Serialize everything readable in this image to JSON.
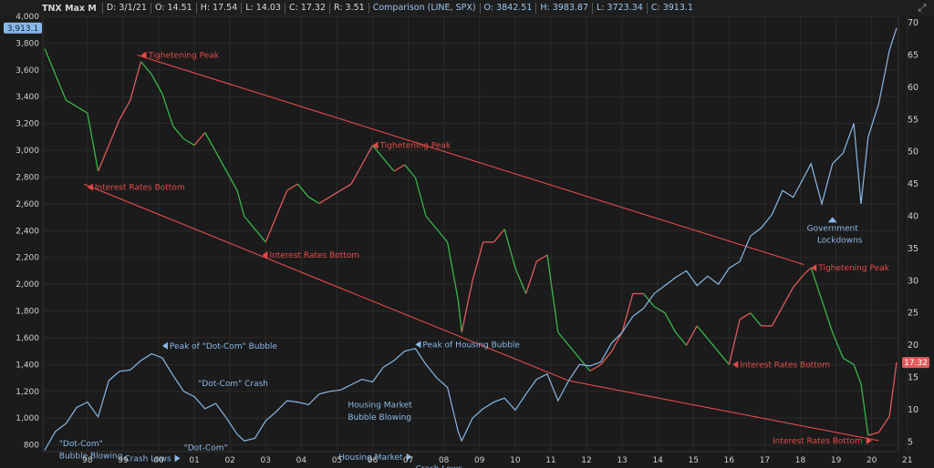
{
  "header": {
    "ticker": "TNX Max M",
    "date": "D: 3/1/21",
    "open": "O: 14.51",
    "high": "H: 17.54",
    "low": "L: 14.03",
    "close": "C: 17.32",
    "range": "R: 3.51",
    "comparison": "Comparison (LINE, SPX)",
    "comp_open": "O: 3842.51",
    "comp_high": "H: 3983.87",
    "comp_low": "L: 3723.34",
    "comp_close": "C: 3913.1"
  },
  "colors": {
    "background": "#1b1b1b",
    "up": "#e05a5a",
    "down": "#39b54a",
    "spx": "#8ab8e6",
    "trendline": "#e84a4a",
    "annotation_red": "#e84a4a",
    "annotation_blue": "#8ab8e6",
    "grid": "#2b2b2b"
  },
  "chart_data": {
    "type": "line",
    "x_ticks": [
      "98",
      "99",
      "00",
      "01",
      "02",
      "03",
      "04",
      "05",
      "06",
      "07",
      "08",
      "09",
      "10",
      "11",
      "12",
      "13",
      "14",
      "15",
      "16",
      "17",
      "18",
      "19",
      "20",
      "21"
    ],
    "x_range": [
      1997.25,
      2021.25
    ],
    "left_axis": {
      "range": [
        750,
        4000
      ],
      "ticks": [
        "800",
        "1,000",
        "1,200",
        "1,400",
        "1,600",
        "1,800",
        "2,000",
        "2,200",
        "2,400",
        "2,600",
        "2,800",
        "3,000",
        "3,200",
        "3,400",
        "3,600",
        "3,800",
        "4,000"
      ],
      "last_label": "3,913.1"
    },
    "right_axis": {
      "range": [
        3.5,
        71
      ],
      "ticks": [
        "5",
        "10",
        "15",
        "20",
        "25",
        "30",
        "35",
        "40",
        "45",
        "50",
        "55",
        "60",
        "65",
        "70"
      ],
      "last_label": "17.32"
    },
    "series": [
      {
        "name": "TNX",
        "axis": "right",
        "x": [
          1997.3,
          1997.6,
          1997.9,
          1998.2,
          1998.5,
          1998.8,
          1999.1,
          1999.4,
          1999.7,
          2000.0,
          2000.3,
          2000.6,
          2000.9,
          2001.2,
          2001.5,
          2001.8,
          2002.1,
          2002.4,
          2002.7,
          2002.9,
          2003.2,
          2003.5,
          2003.8,
          2004.1,
          2004.4,
          2004.7,
          2005.0,
          2005.3,
          2005.6,
          2005.9,
          2006.2,
          2006.5,
          2006.8,
          2007.1,
          2007.4,
          2007.7,
          2008.0,
          2008.3,
          2008.6,
          2008.9,
          2009.0,
          2009.3,
          2009.6,
          2009.9,
          2010.2,
          2010.5,
          2010.8,
          2011.1,
          2011.4,
          2011.7,
          2012.0,
          2012.3,
          2012.6,
          2012.9,
          2013.2,
          2013.5,
          2013.8,
          2014.1,
          2014.4,
          2014.7,
          2015.0,
          2015.3,
          2015.6,
          2015.9,
          2016.2,
          2016.5,
          2016.8,
          2017.1,
          2017.4,
          2017.7,
          2018.0,
          2018.3,
          2018.6,
          2018.8,
          2019.1,
          2019.4,
          2019.7,
          2020.0,
          2020.2,
          2020.4,
          2020.7,
          2021.0,
          2021.2
        ],
        "values": [
          66,
          62,
          58,
          57,
          56,
          47,
          51,
          55,
          58,
          64,
          62,
          59,
          54,
          52,
          51,
          53,
          50,
          47,
          44,
          40,
          38,
          36,
          40,
          44,
          45,
          43,
          42,
          43,
          44,
          45,
          48,
          51,
          49,
          47,
          48,
          46,
          40,
          38,
          36,
          27,
          22,
          30,
          36,
          36,
          38,
          32,
          28,
          33,
          34,
          22,
          20,
          18,
          16,
          17,
          19,
          22,
          28,
          28,
          26,
          25,
          22,
          20,
          23,
          21,
          19,
          17,
          24,
          25,
          23,
          23,
          26,
          29,
          31,
          32,
          27,
          22,
          18,
          17,
          14,
          6,
          6.5,
          9,
          17.32
        ]
      },
      {
        "name": "SPX",
        "axis": "left",
        "x": [
          1997.3,
          1997.6,
          1997.9,
          1998.2,
          1998.5,
          1998.8,
          1999.1,
          1999.4,
          1999.7,
          2000.0,
          2000.3,
          2000.6,
          2000.9,
          2001.2,
          2001.5,
          2001.8,
          2002.1,
          2002.4,
          2002.7,
          2002.9,
          2003.2,
          2003.5,
          2003.8,
          2004.1,
          2004.4,
          2004.7,
          2005.0,
          2005.3,
          2005.6,
          2005.9,
          2006.2,
          2006.5,
          2006.8,
          2007.1,
          2007.4,
          2007.7,
          2008.0,
          2008.3,
          2008.6,
          2008.9,
          2009.0,
          2009.3,
          2009.6,
          2009.9,
          2010.2,
          2010.5,
          2010.8,
          2011.1,
          2011.4,
          2011.7,
          2012.0,
          2012.3,
          2012.6,
          2012.9,
          2013.2,
          2013.5,
          2013.8,
          2014.1,
          2014.4,
          2014.7,
          2015.0,
          2015.3,
          2015.6,
          2015.9,
          2016.2,
          2016.5,
          2016.8,
          2017.1,
          2017.4,
          2017.7,
          2018.0,
          2018.3,
          2018.6,
          2018.8,
          2019.1,
          2019.4,
          2019.7,
          2020.0,
          2020.2,
          2020.4,
          2020.7,
          2021.0,
          2021.2
        ],
        "values": [
          760,
          900,
          960,
          1080,
          1120,
          1010,
          1280,
          1350,
          1360,
          1430,
          1480,
          1450,
          1320,
          1200,
          1160,
          1070,
          1110,
          1000,
          880,
          830,
          850,
          980,
          1050,
          1130,
          1120,
          1100,
          1180,
          1200,
          1210,
          1250,
          1290,
          1270,
          1380,
          1430,
          1500,
          1520,
          1400,
          1300,
          1230,
          900,
          830,
          1000,
          1070,
          1120,
          1150,
          1060,
          1180,
          1290,
          1330,
          1130,
          1280,
          1400,
          1390,
          1420,
          1560,
          1640,
          1760,
          1820,
          1930,
          1990,
          2050,
          2100,
          1990,
          2060,
          2000,
          2120,
          2170,
          2360,
          2420,
          2520,
          2700,
          2650,
          2800,
          2900,
          2600,
          2900,
          2980,
          3200,
          2600,
          3100,
          3350,
          3750,
          3913.1
        ]
      }
    ],
    "trendlines": [
      {
        "axis": "right",
        "points": [
          [
            1999.9,
            65
          ],
          [
            2018.6,
            32.5
          ]
        ]
      },
      {
        "axis": "right",
        "points": [
          [
            1998.4,
            45
          ],
          [
            2012.0,
            14.5
          ],
          [
            2020.7,
            5.2
          ]
        ]
      }
    ],
    "annotations": [
      {
        "text": "Tighetening Peak",
        "x": 2000.0,
        "y": 65,
        "axis": "right",
        "color": "red",
        "pointer": "left"
      },
      {
        "text": "Interest Rates Bottom",
        "x": 1998.5,
        "y": 44.5,
        "axis": "right",
        "color": "red",
        "pointer": "left"
      },
      {
        "text": "Tighetening Peak",
        "x": 2006.5,
        "y": 51,
        "axis": "right",
        "color": "red",
        "pointer": "left"
      },
      {
        "text": "Interest Rates Bottom",
        "x": 2003.4,
        "y": 34,
        "axis": "right",
        "color": "red",
        "pointer": "left"
      },
      {
        "text": "Tighetening Peak",
        "x": 2018.8,
        "y": 32,
        "axis": "right",
        "color": "red",
        "pointer": "left"
      },
      {
        "text": "Interest Rates Bottom",
        "x": 2016.6,
        "y": 17,
        "axis": "right",
        "color": "red",
        "pointer": "left"
      },
      {
        "text": "Interest Rates Bottom",
        "x": 2020.4,
        "y": 5.2,
        "axis": "right",
        "color": "red",
        "pointer": "right"
      },
      {
        "text": "Peak of \"Dot-Com\" Bubble",
        "x": 2000.6,
        "y": 1540,
        "axis": "left",
        "color": "blue",
        "pointer": "left"
      },
      {
        "text": "Peak of Housing Bubble",
        "x": 2007.7,
        "y": 1550,
        "axis": "left",
        "color": "blue",
        "pointer": "left"
      },
      {
        "text": "\"Dot-Com\" Crash",
        "x": 2001.4,
        "y": 1260,
        "axis": "left",
        "color": "blue",
        "pointer": "none"
      },
      {
        "text": "\"Dot-Com\"",
        "x": 1997.5,
        "y": 810,
        "axis": "left",
        "color": "blue",
        "pointer": "none"
      },
      {
        "text": "Bubble Blowing",
        "x": 1997.5,
        "y": 720,
        "axis": "left",
        "color": "blue",
        "pointer": "none"
      },
      {
        "text": "\"Dot-Com\"",
        "x": 2001.0,
        "y": 780,
        "axis": "left",
        "color": "blue",
        "pointer": "none"
      },
      {
        "text": "Crash Lows",
        "x": 2001.0,
        "y": 700,
        "axis": "left",
        "color": "blue",
        "pointer": "right"
      },
      {
        "text": "Housing Market",
        "x": 2005.6,
        "y": 1100,
        "axis": "left",
        "color": "blue",
        "pointer": "none"
      },
      {
        "text": "Bubble Blowing",
        "x": 2005.6,
        "y": 1010,
        "axis": "left",
        "color": "blue",
        "pointer": "none"
      },
      {
        "text": "Housing Market",
        "x": 2007.5,
        "y": 710,
        "axis": "left",
        "color": "blue",
        "pointer": "right"
      },
      {
        "text": "Crash Lows",
        "x": 2007.5,
        "y": 625,
        "axis": "left",
        "color": "blue",
        "pointer": "none"
      },
      {
        "text": "Government",
        "x": 2019.4,
        "y": 2420,
        "axis": "left",
        "color": "blue",
        "pointer": "up"
      },
      {
        "text": "Lockdowns",
        "x": 2019.4,
        "y": 2330,
        "axis": "left",
        "color": "blue",
        "pointer": "none"
      }
    ]
  }
}
